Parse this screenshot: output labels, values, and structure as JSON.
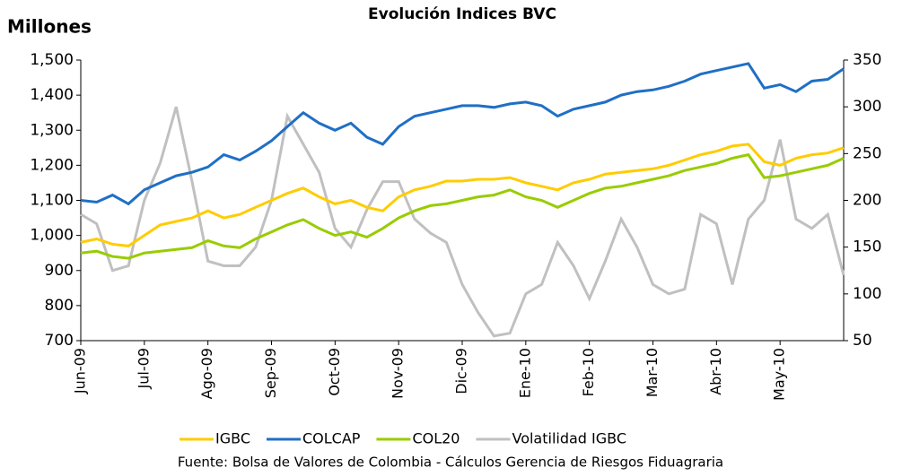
{
  "chart_data": {
    "type": "line",
    "title": "Evolución Indices BVC",
    "y_label": "Millones",
    "source": "Fuente: Bolsa de Valores de Colombia - Cálculos Gerencia de Riesgos Fiduagraria",
    "categories": [
      "Jun-09",
      null,
      null,
      null,
      "Jul-09",
      null,
      null,
      null,
      "Ago-09",
      null,
      null,
      null,
      "Sep-09",
      null,
      null,
      null,
      "Oct-09",
      null,
      null,
      null,
      "Nov-09",
      null,
      null,
      null,
      "Dic-09",
      null,
      null,
      null,
      "Ene-10",
      null,
      null,
      null,
      "Feb-10",
      null,
      null,
      null,
      "Mar-10",
      null,
      null,
      null,
      "Abr-10",
      null,
      null,
      null,
      "May-10",
      null,
      null,
      null,
      null
    ],
    "series": [
      {
        "name": "IGBC",
        "color": "#ffcc00",
        "values": [
          980,
          990,
          975,
          970,
          1000,
          1030,
          1040,
          1050,
          1070,
          1050,
          1060,
          1080,
          1100,
          1120,
          1135,
          1110,
          1090,
          1100,
          1080,
          1070,
          1110,
          1130,
          1140,
          1155,
          1155,
          1160,
          1160,
          1165,
          1150,
          1140,
          1130,
          1150,
          1160,
          1175,
          1180,
          1185,
          1190,
          1200,
          1215,
          1230,
          1240,
          1255,
          1260,
          1210,
          1200,
          1220,
          1230,
          1235,
          1250
        ]
      },
      {
        "name": "COLCAP",
        "color": "#1f6fc5",
        "values": [
          1100,
          1095,
          1115,
          1090,
          1130,
          1150,
          1170,
          1180,
          1195,
          1230,
          1215,
          1240,
          1270,
          1310,
          1350,
          1320,
          1300,
          1320,
          1280,
          1260,
          1310,
          1340,
          1350,
          1360,
          1370,
          1370,
          1365,
          1375,
          1380,
          1370,
          1340,
          1360,
          1370,
          1380,
          1400,
          1410,
          1415,
          1425,
          1440,
          1460,
          1470,
          1480,
          1490,
          1420,
          1430,
          1410,
          1440,
          1445,
          1475
        ]
      },
      {
        "name": "COL20",
        "color": "#99cc00",
        "values": [
          950,
          955,
          940,
          935,
          950,
          955,
          960,
          965,
          985,
          970,
          965,
          990,
          1010,
          1030,
          1045,
          1020,
          1000,
          1010,
          995,
          1020,
          1050,
          1070,
          1085,
          1090,
          1100,
          1110,
          1115,
          1130,
          1110,
          1100,
          1080,
          1100,
          1120,
          1135,
          1140,
          1150,
          1160,
          1170,
          1185,
          1195,
          1205,
          1220,
          1230,
          1165,
          1170,
          1180,
          1190,
          1200,
          1220
        ]
      },
      {
        "name": "Volatilidad IGBC",
        "color": "#c0c0c0",
        "axis": "y2",
        "values": [
          185,
          175,
          125,
          130,
          200,
          240,
          300,
          220,
          135,
          130,
          130,
          150,
          200,
          290,
          260,
          230,
          170,
          150,
          190,
          220,
          220,
          180,
          165,
          155,
          110,
          80,
          55,
          58,
          100,
          110,
          155,
          130,
          95,
          135,
          180,
          150,
          110,
          100,
          105,
          185,
          175,
          110,
          180,
          200,
          265,
          180,
          170,
          185,
          120
        ]
      }
    ],
    "ylim": [
      700,
      1500
    ],
    "yticks": [
      {
        "value": 700,
        "label": "700"
      },
      {
        "value": 800,
        "label": "800"
      },
      {
        "value": 900,
        "label": "900"
      },
      {
        "value": 1000,
        "label": "1,000"
      },
      {
        "value": 1100,
        "label": "1,100"
      },
      {
        "value": 1200,
        "label": "1,200"
      },
      {
        "value": 1300,
        "label": "1,300"
      },
      {
        "value": 1400,
        "label": "1,400"
      },
      {
        "value": 1500,
        "label": "1,500"
      }
    ],
    "y2lim": [
      50,
      350
    ],
    "y2ticks": [
      50,
      100,
      150,
      200,
      250,
      300,
      350
    ],
    "legend": "bottom"
  }
}
